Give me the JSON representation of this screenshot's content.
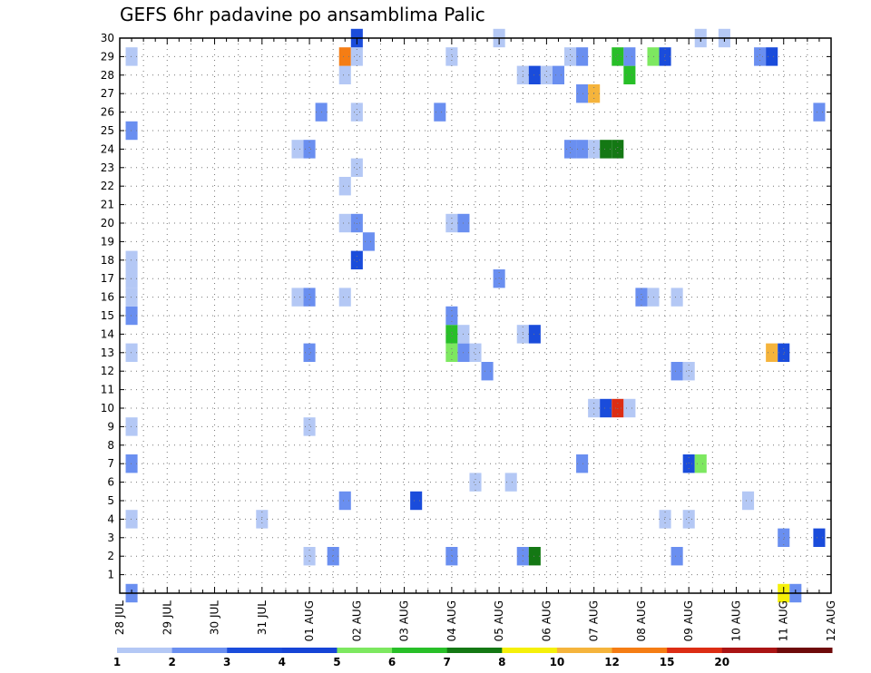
{
  "chart_data": {
    "type": "heatmap",
    "title": "GEFS 6hr padavine po ansamblima Palic",
    "xlabel": "",
    "ylabel": "",
    "x_tick_labels": [
      "28 JUL",
      "29 JUL",
      "30 JUL",
      "31 JUL",
      "01 AUG",
      "02 AUG",
      "03 AUG",
      "04 AUG",
      "05 AUG",
      "06 AUG",
      "07 AUG",
      "08 AUG",
      "09 AUG",
      "10 AUG",
      "11 AUG",
      "12 AUG"
    ],
    "x_range_days": [
      0,
      15
    ],
    "y_tick_labels": [
      "1",
      "2",
      "3",
      "4",
      "5",
      "6",
      "7",
      "8",
      "9",
      "10",
      "11",
      "12",
      "13",
      "14",
      "15",
      "16",
      "17",
      "18",
      "19",
      "20",
      "21",
      "22",
      "23",
      "24",
      "25",
      "26",
      "27",
      "28",
      "29",
      "30"
    ],
    "y_range": [
      0,
      30
    ],
    "grid": true,
    "colorbar": {
      "colors": [
        "#b4c8f5",
        "#6a8ff0",
        "#1a4cdb",
        "#1644d6",
        "#7de860",
        "#28bf28",
        "#147814",
        "#f5f00a",
        "#f5b43c",
        "#f57d14",
        "#dc2d14",
        "#aa1414",
        "#6e0a0a"
      ],
      "labels": [
        "1",
        "2",
        "3",
        "4",
        "5",
        "6",
        "7",
        "8",
        "10",
        "12",
        "15",
        "20"
      ]
    },
    "cells": [
      {
        "x": 0.25,
        "y": 0,
        "c": 2
      },
      {
        "x": 0.25,
        "y": 4,
        "c": 1
      },
      {
        "x": 0.25,
        "y": 7,
        "c": 2
      },
      {
        "x": 0.25,
        "y": 9,
        "c": 1
      },
      {
        "x": 0.25,
        "y": 13,
        "c": 1
      },
      {
        "x": 0.25,
        "y": 15,
        "c": 2
      },
      {
        "x": 0.25,
        "y": 16,
        "c": 1
      },
      {
        "x": 0.25,
        "y": 17,
        "c": 1
      },
      {
        "x": 0.25,
        "y": 18,
        "c": 1
      },
      {
        "x": 0.25,
        "y": 25,
        "c": 2
      },
      {
        "x": 0.25,
        "y": 29,
        "c": 1
      },
      {
        "x": 3.0,
        "y": 4,
        "c": 1
      },
      {
        "x": 3.75,
        "y": 16,
        "c": 1
      },
      {
        "x": 3.75,
        "y": 24,
        "c": 1
      },
      {
        "x": 4.0,
        "y": 2,
        "c": 1
      },
      {
        "x": 4.0,
        "y": 9,
        "c": 1
      },
      {
        "x": 4.0,
        "y": 13,
        "c": 2
      },
      {
        "x": 4.0,
        "y": 16,
        "c": 2
      },
      {
        "x": 4.0,
        "y": 24,
        "c": 2
      },
      {
        "x": 4.25,
        "y": 26,
        "c": 2
      },
      {
        "x": 4.5,
        "y": 2,
        "c": 2
      },
      {
        "x": 4.75,
        "y": 5,
        "c": 2
      },
      {
        "x": 4.75,
        "y": 16,
        "c": 1
      },
      {
        "x": 4.75,
        "y": 20,
        "c": 1
      },
      {
        "x": 4.75,
        "y": 22,
        "c": 1
      },
      {
        "x": 4.75,
        "y": 28,
        "c": 1
      },
      {
        "x": 4.75,
        "y": 29,
        "c": 10
      },
      {
        "x": 5.0,
        "y": 18,
        "c": 3
      },
      {
        "x": 5.0,
        "y": 20,
        "c": 2
      },
      {
        "x": 5.0,
        "y": 23,
        "c": 1
      },
      {
        "x": 5.0,
        "y": 26,
        "c": 1
      },
      {
        "x": 5.0,
        "y": 29,
        "c": 1
      },
      {
        "x": 5.0,
        "y": 30,
        "c": 3
      },
      {
        "x": 5.25,
        "y": 19,
        "c": 2
      },
      {
        "x": 6.25,
        "y": 5,
        "c": 3
      },
      {
        "x": 6.75,
        "y": 26,
        "c": 2
      },
      {
        "x": 7.0,
        "y": 2,
        "c": 2
      },
      {
        "x": 7.0,
        "y": 13,
        "c": 5
      },
      {
        "x": 7.0,
        "y": 14,
        "c": 6
      },
      {
        "x": 7.0,
        "y": 15,
        "c": 2
      },
      {
        "x": 7.0,
        "y": 20,
        "c": 1
      },
      {
        "x": 7.0,
        "y": 29,
        "c": 1
      },
      {
        "x": 7.25,
        "y": 13,
        "c": 2
      },
      {
        "x": 7.25,
        "y": 14,
        "c": 1
      },
      {
        "x": 7.25,
        "y": 20,
        "c": 2
      },
      {
        "x": 7.5,
        "y": 6,
        "c": 1
      },
      {
        "x": 7.5,
        "y": 13,
        "c": 1
      },
      {
        "x": 7.75,
        "y": 12,
        "c": 2
      },
      {
        "x": 8.0,
        "y": 17,
        "c": 2
      },
      {
        "x": 8.0,
        "y": 30,
        "c": 1
      },
      {
        "x": 8.25,
        "y": 6,
        "c": 1
      },
      {
        "x": 8.5,
        "y": 2,
        "c": 2
      },
      {
        "x": 8.5,
        "y": 14,
        "c": 1
      },
      {
        "x": 8.5,
        "y": 28,
        "c": 1
      },
      {
        "x": 8.75,
        "y": 2,
        "c": 7
      },
      {
        "x": 8.75,
        "y": 14,
        "c": 3
      },
      {
        "x": 8.75,
        "y": 28,
        "c": 3
      },
      {
        "x": 9.0,
        "y": 28,
        "c": 1
      },
      {
        "x": 9.25,
        "y": 28,
        "c": 2
      },
      {
        "x": 9.5,
        "y": 24,
        "c": 2
      },
      {
        "x": 9.5,
        "y": 29,
        "c": 1
      },
      {
        "x": 9.75,
        "y": 7,
        "c": 2
      },
      {
        "x": 9.75,
        "y": 24,
        "c": 2
      },
      {
        "x": 9.75,
        "y": 27,
        "c": 2
      },
      {
        "x": 9.75,
        "y": 29,
        "c": 2
      },
      {
        "x": 10.0,
        "y": 10,
        "c": 1
      },
      {
        "x": 10.0,
        "y": 24,
        "c": 1
      },
      {
        "x": 10.0,
        "y": 27,
        "c": 9
      },
      {
        "x": 10.25,
        "y": 10,
        "c": 3
      },
      {
        "x": 10.25,
        "y": 24,
        "c": 7
      },
      {
        "x": 10.5,
        "y": 10,
        "c": 11
      },
      {
        "x": 10.5,
        "y": 24,
        "c": 7
      },
      {
        "x": 10.5,
        "y": 29,
        "c": 6
      },
      {
        "x": 10.75,
        "y": 10,
        "c": 1
      },
      {
        "x": 10.75,
        "y": 28,
        "c": 6
      },
      {
        "x": 10.75,
        "y": 29,
        "c": 2
      },
      {
        "x": 11.0,
        "y": 16,
        "c": 2
      },
      {
        "x": 11.25,
        "y": 16,
        "c": 1
      },
      {
        "x": 11.25,
        "y": 29,
        "c": 5
      },
      {
        "x": 11.5,
        "y": 4,
        "c": 1
      },
      {
        "x": 11.5,
        "y": 29,
        "c": 3
      },
      {
        "x": 11.75,
        "y": 2,
        "c": 2
      },
      {
        "x": 11.75,
        "y": 12,
        "c": 2
      },
      {
        "x": 11.75,
        "y": 16,
        "c": 1
      },
      {
        "x": 12.0,
        "y": 4,
        "c": 1
      },
      {
        "x": 12.0,
        "y": 7,
        "c": 3
      },
      {
        "x": 12.0,
        "y": 12,
        "c": 1
      },
      {
        "x": 12.25,
        "y": 7,
        "c": 5
      },
      {
        "x": 12.25,
        "y": 30,
        "c": 1
      },
      {
        "x": 12.75,
        "y": 30,
        "c": 1
      },
      {
        "x": 13.25,
        "y": 5,
        "c": 1
      },
      {
        "x": 13.5,
        "y": 29,
        "c": 2
      },
      {
        "x": 13.75,
        "y": 13,
        "c": 9
      },
      {
        "x": 13.75,
        "y": 29,
        "c": 3
      },
      {
        "x": 14.0,
        "y": 0,
        "c": 8
      },
      {
        "x": 14.0,
        "y": 3,
        "c": 2
      },
      {
        "x": 14.0,
        "y": 13,
        "c": 3
      },
      {
        "x": 14.25,
        "y": 0,
        "c": 2
      },
      {
        "x": 14.75,
        "y": 3,
        "c": 3
      },
      {
        "x": 14.75,
        "y": 26,
        "c": 2
      }
    ]
  }
}
